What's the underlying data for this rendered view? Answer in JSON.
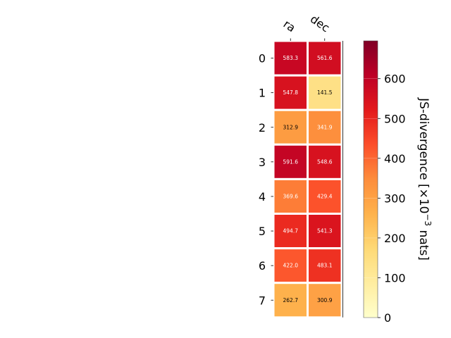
{
  "chart_data": {
    "type": "heatmap",
    "title": "",
    "columns": [
      "ra",
      "dec"
    ],
    "rows": [
      "0",
      "1",
      "2",
      "3",
      "4",
      "5",
      "6",
      "7"
    ],
    "values": [
      [
        583.3,
        561.6
      ],
      [
        547.8,
        141.5
      ],
      [
        312.9,
        341.9
      ],
      [
        591.6,
        548.6
      ],
      [
        369.6,
        429.4
      ],
      [
        494.7,
        541.3
      ],
      [
        422.0,
        483.1
      ],
      [
        262.7,
        300.9
      ]
    ],
    "cell_labels": [
      [
        "583.3",
        "561.6"
      ],
      [
        "547.8",
        "141.5"
      ],
      [
        "312.9",
        "341.9"
      ],
      [
        "591.6",
        "548.6"
      ],
      [
        "369.6",
        "429.4"
      ],
      [
        "494.7",
        "541.3"
      ],
      [
        "422.0",
        "483.1"
      ],
      [
        "262.7",
        "300.9"
      ]
    ],
    "colorbar": {
      "label_main": "JS-divergence [×10",
      "label_exp": "−3",
      "label_unit": " nats]",
      "range": [
        0,
        695
      ],
      "ticks": [
        0,
        100,
        200,
        300,
        400,
        500,
        600
      ],
      "tick_labels": [
        "0",
        "100",
        "200",
        "300",
        "400",
        "500",
        "600"
      ],
      "colormap": "YlOrRd",
      "colormap_stops": [
        "#ffffcc",
        "#ffeda0",
        "#fed976",
        "#feb24c",
        "#fd8d3c",
        "#fc4e2a",
        "#e31a1c",
        "#bd0026",
        "#800026"
      ]
    },
    "grid": false
  }
}
